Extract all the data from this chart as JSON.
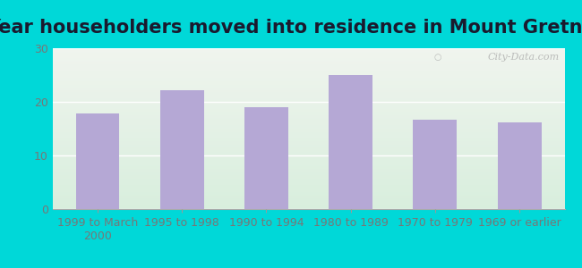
{
  "title": "Year householders moved into residence in Mount Gretna",
  "categories": [
    "1999 to March\n2000",
    "1995 to 1998",
    "1990 to 1994",
    "1980 to 1989",
    "1970 to 1979",
    "1969 or earlier"
  ],
  "values": [
    17.8,
    22.2,
    19.0,
    25.0,
    16.7,
    16.1
  ],
  "bar_color": "#b5a8d5",
  "ylim": [
    0,
    30
  ],
  "yticks": [
    0,
    10,
    20,
    30
  ],
  "background_outer": "#00d8d8",
  "background_inner_top": "#f0f4ee",
  "background_inner_bottom": "#d8eedd",
  "title_fontsize": 15,
  "tick_fontsize": 9,
  "watermark": "City-Data.com",
  "grid_color": "#ffffff",
  "tick_color": "#777777",
  "title_color": "#1a1a2e"
}
